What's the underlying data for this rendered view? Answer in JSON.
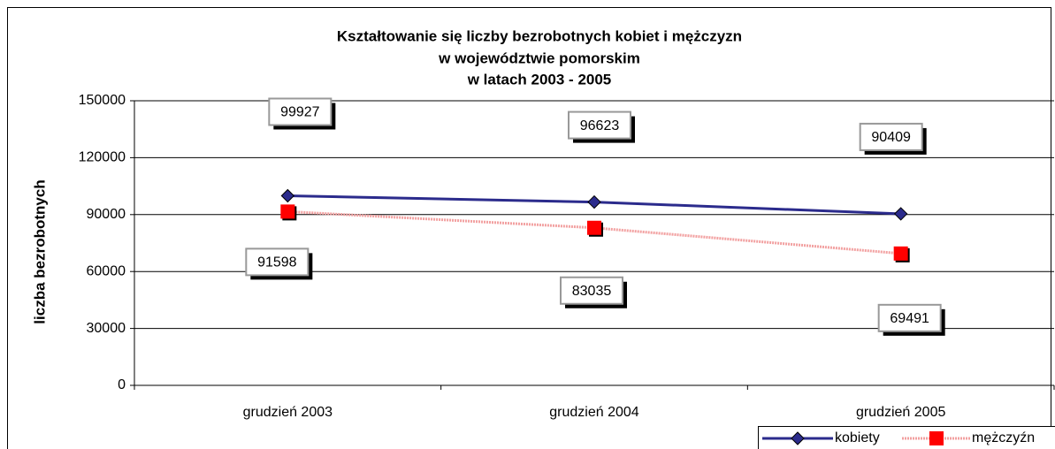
{
  "chart_data": {
    "type": "line",
    "title": [
      "Kształtowanie się liczby bezrobotnych kobiet i mężczyzn",
      "w województwie pomorskim",
      "w latach 2003 - 2005"
    ],
    "y_label": "liczba bezrobotnych",
    "categories": [
      "grudzień 2003",
      "grudzień 2004",
      "grudzień 2005"
    ],
    "series": [
      {
        "name": "kobiety",
        "color": "#2b2b8c",
        "values": [
          99927,
          96623,
          90409
        ]
      },
      {
        "name": "mężczyźn",
        "color": "#ff0000",
        "values": [
          91598,
          83035,
          69491
        ]
      }
    ],
    "ylim": [
      0,
      150000
    ],
    "yticks": [
      0,
      30000,
      60000,
      90000,
      120000,
      150000
    ],
    "grid": true
  }
}
